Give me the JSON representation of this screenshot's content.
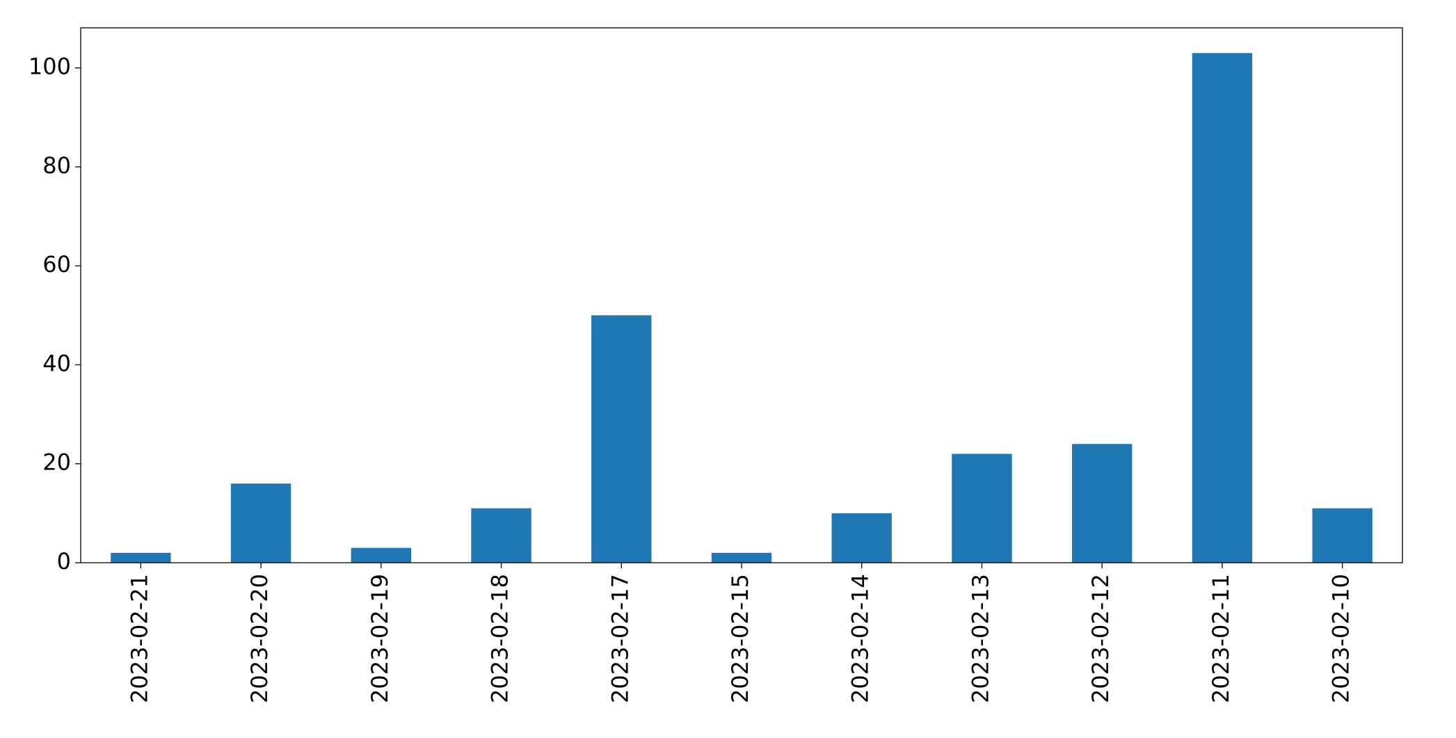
{
  "chart_data": {
    "type": "bar",
    "categories": [
      "2023-02-21",
      "2023-02-20",
      "2023-02-19",
      "2023-02-18",
      "2023-02-17",
      "2023-02-15",
      "2023-02-14",
      "2023-02-13",
      "2023-02-12",
      "2023-02-11",
      "2023-02-10"
    ],
    "values": [
      2,
      16,
      3,
      11,
      50,
      2,
      10,
      22,
      24,
      103,
      11
    ],
    "color": "#1f77b4",
    "ylim": [
      0,
      108.1
    ],
    "yticks": [
      0,
      20,
      40,
      60,
      80,
      100
    ],
    "grid": false
  }
}
